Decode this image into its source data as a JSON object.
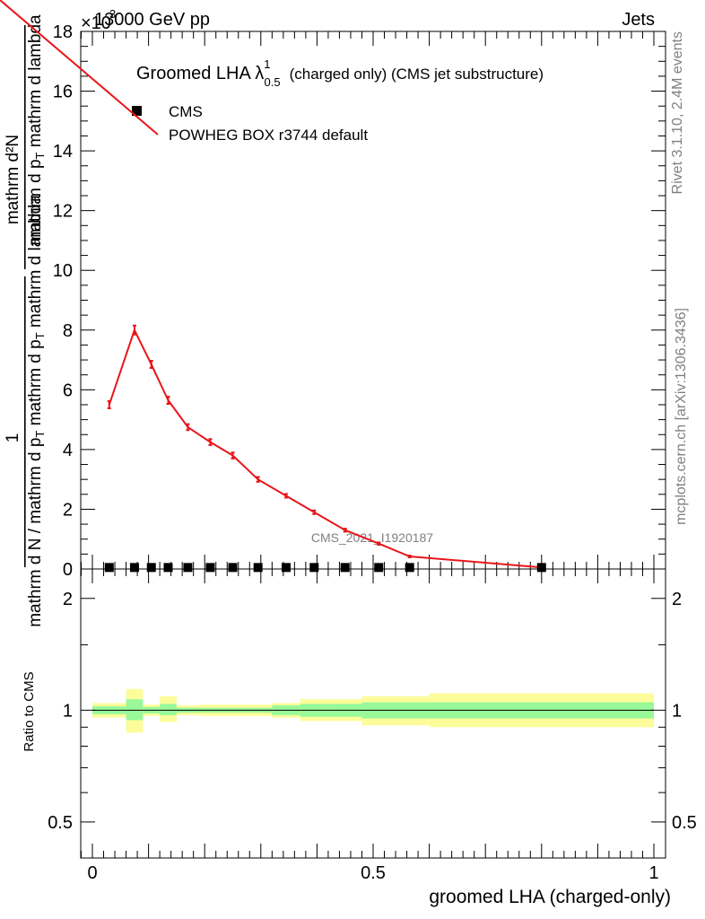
{
  "header": {
    "left": "13000 GeV pp",
    "right": "Jets",
    "scale_factor": "×10",
    "scale_exponent": "3"
  },
  "side_labels": {
    "rivet": "Rivet 3.1.10,  2.4M events",
    "mcplots": "mcplots.cern.ch [arXiv:1306.3436]"
  },
  "title": {
    "main": "Groomed LHA λ",
    "sup": "1",
    "sub": "0.5",
    "rest": "(charged only) (CMS jet substructure)"
  },
  "watermark": "CMS_2021_I1920187",
  "y_axis_label": {
    "line1": "mathrm d²N",
    "line2": "mathrm d p",
    "line2_sub": "T",
    "line2_rest": " mathrm d lambda",
    "line3": "1",
    "line4a": "mathrm d N / mathrm d p",
    "line4_sub": "T",
    "line4b": " mathrm d p",
    "line4_sub2": "T",
    "line4c": " mathrm d lambda"
  },
  "ratio_y_label": "Ratio to CMS",
  "x_axis_label": "groomed LHA (charged-only)",
  "colors": {
    "mc_line": "#e8161a",
    "band_inner": "#99f999",
    "band_outer": "#fdfc9a",
    "data": "#000000"
  },
  "chart_data": [
    {
      "type": "line",
      "panel": "main",
      "xlim": [
        -0.02,
        1.02
      ],
      "ylim": [
        0,
        18
      ],
      "y_multiplier": 1000,
      "y_ticks": [
        0,
        2,
        4,
        6,
        8,
        10,
        12,
        14,
        16,
        18
      ],
      "y_tick_labels": [
        "0",
        "2",
        "4",
        "6",
        "8",
        "10",
        "12",
        "14",
        "16",
        "18"
      ],
      "legend": [
        "CMS",
        "POWHEG BOX r3744 default"
      ],
      "legend_position": "top-left",
      "series": [
        {
          "name": "CMS",
          "marker": "square",
          "x": [
            0.03,
            0.075,
            0.105,
            0.135,
            0.17,
            0.21,
            0.25,
            0.295,
            0.345,
            0.395,
            0.45,
            0.51,
            0.565,
            0.8
          ],
          "values": [
            0.05,
            0.05,
            0.05,
            0.05,
            0.05,
            0.05,
            0.05,
            0.05,
            0.05,
            0.05,
            0.05,
            0.05,
            0.05,
            0.05
          ]
        },
        {
          "name": "POWHEG BOX r3744 default",
          "x": [
            0.03,
            0.075,
            0.105,
            0.135,
            0.17,
            0.21,
            0.25,
            0.295,
            0.345,
            0.395,
            0.45,
            0.51,
            0.565,
            0.8
          ],
          "values": [
            5.5,
            8.0,
            6.85,
            5.65,
            4.75,
            4.25,
            3.8,
            3.0,
            2.45,
            1.9,
            1.3,
            0.85,
            0.42,
            0.05
          ],
          "errors": [
            0.12,
            0.15,
            0.12,
            0.12,
            0.1,
            0.1,
            0.1,
            0.08,
            0.06,
            0.06,
            0.05,
            0.04,
            0.03,
            0.02
          ]
        }
      ]
    },
    {
      "type": "area",
      "panel": "ratio",
      "xlim": [
        -0.02,
        1.02
      ],
      "ylim": [
        0.4,
        2.4
      ],
      "y_scale": "log",
      "y_ticks": [
        0.5,
        1,
        2
      ],
      "y_tick_labels": [
        "0.5",
        "1",
        "2"
      ],
      "x_ticks": [
        0,
        0.5,
        1
      ],
      "x_tick_labels": [
        "0",
        "0.5",
        "1"
      ],
      "reference": 1,
      "bins": [
        {
          "lo": 0.0,
          "hi": 0.06,
          "inner": [
            0.975,
            1.025
          ],
          "outer": [
            0.955,
            1.045
          ]
        },
        {
          "lo": 0.06,
          "hi": 0.09,
          "inner": [
            0.94,
            1.07
          ],
          "outer": [
            0.87,
            1.14
          ]
        },
        {
          "lo": 0.09,
          "hi": 0.12,
          "inner": [
            0.98,
            1.02
          ],
          "outer": [
            0.965,
            1.035
          ]
        },
        {
          "lo": 0.12,
          "hi": 0.15,
          "inner": [
            0.97,
            1.04
          ],
          "outer": [
            0.93,
            1.09
          ]
        },
        {
          "lo": 0.15,
          "hi": 0.19,
          "inner": [
            0.985,
            1.015
          ],
          "outer": [
            0.97,
            1.03
          ]
        },
        {
          "lo": 0.19,
          "hi": 0.23,
          "inner": [
            0.985,
            1.015
          ],
          "outer": [
            0.965,
            1.035
          ]
        },
        {
          "lo": 0.23,
          "hi": 0.27,
          "inner": [
            0.985,
            1.015
          ],
          "outer": [
            0.965,
            1.035
          ]
        },
        {
          "lo": 0.27,
          "hi": 0.32,
          "inner": [
            0.985,
            1.015
          ],
          "outer": [
            0.965,
            1.035
          ]
        },
        {
          "lo": 0.32,
          "hi": 0.37,
          "inner": [
            0.97,
            1.03
          ],
          "outer": [
            0.955,
            1.045
          ]
        },
        {
          "lo": 0.37,
          "hi": 0.42,
          "inner": [
            0.96,
            1.04
          ],
          "outer": [
            0.935,
            1.07
          ]
        },
        {
          "lo": 0.42,
          "hi": 0.48,
          "inner": [
            0.96,
            1.04
          ],
          "outer": [
            0.935,
            1.07
          ]
        },
        {
          "lo": 0.48,
          "hi": 0.6,
          "inner": [
            0.95,
            1.05
          ],
          "outer": [
            0.91,
            1.09
          ]
        },
        {
          "lo": 0.6,
          "hi": 1.0,
          "inner": [
            0.95,
            1.05
          ],
          "outer": [
            0.9,
            1.11
          ]
        }
      ]
    }
  ]
}
